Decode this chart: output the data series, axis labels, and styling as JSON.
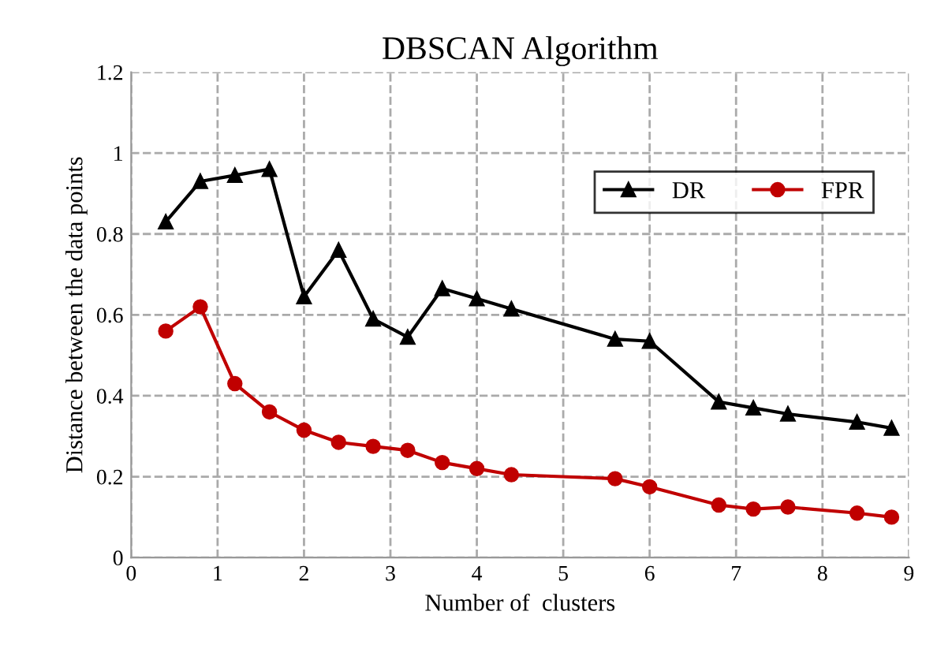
{
  "chart_data": {
    "type": "line",
    "title": "DBSCAN Algorithm",
    "xlabel": "Number of  clusters",
    "ylabel": "Distance between the data points",
    "x": [
      0.4,
      0.8,
      1.2,
      1.6,
      2,
      2.4,
      2.8,
      3.2,
      3.6,
      4,
      4.4,
      5.6,
      6,
      6.8,
      7.2,
      7.6,
      8.4,
      8.8
    ],
    "series": [
      {
        "name": "DR",
        "color": "#000000",
        "marker": "triangle",
        "values": [
          0.83,
          0.93,
          0.945,
          0.96,
          0.645,
          0.76,
          0.59,
          0.545,
          0.665,
          0.64,
          0.615,
          0.54,
          0.535,
          0.385,
          0.37,
          0.355,
          0.335,
          0.32
        ]
      },
      {
        "name": "FPR",
        "color": "#c00000",
        "marker": "circle",
        "values": [
          0.56,
          0.62,
          0.43,
          0.36,
          0.315,
          0.285,
          0.275,
          0.265,
          0.235,
          0.22,
          0.205,
          0.195,
          0.175,
          0.13,
          0.12,
          0.125,
          0.11,
          0.1
        ]
      }
    ],
    "xlim": [
      0,
      9
    ],
    "xticks": [
      0,
      1,
      2,
      3,
      4,
      5,
      6,
      7,
      8,
      9
    ],
    "ylim": [
      0,
      1.2
    ],
    "yticks": [
      0,
      0.2,
      0.4,
      0.6,
      0.8,
      1,
      1.2
    ],
    "grid": true,
    "line_style": "solid",
    "legend": "top right"
  }
}
